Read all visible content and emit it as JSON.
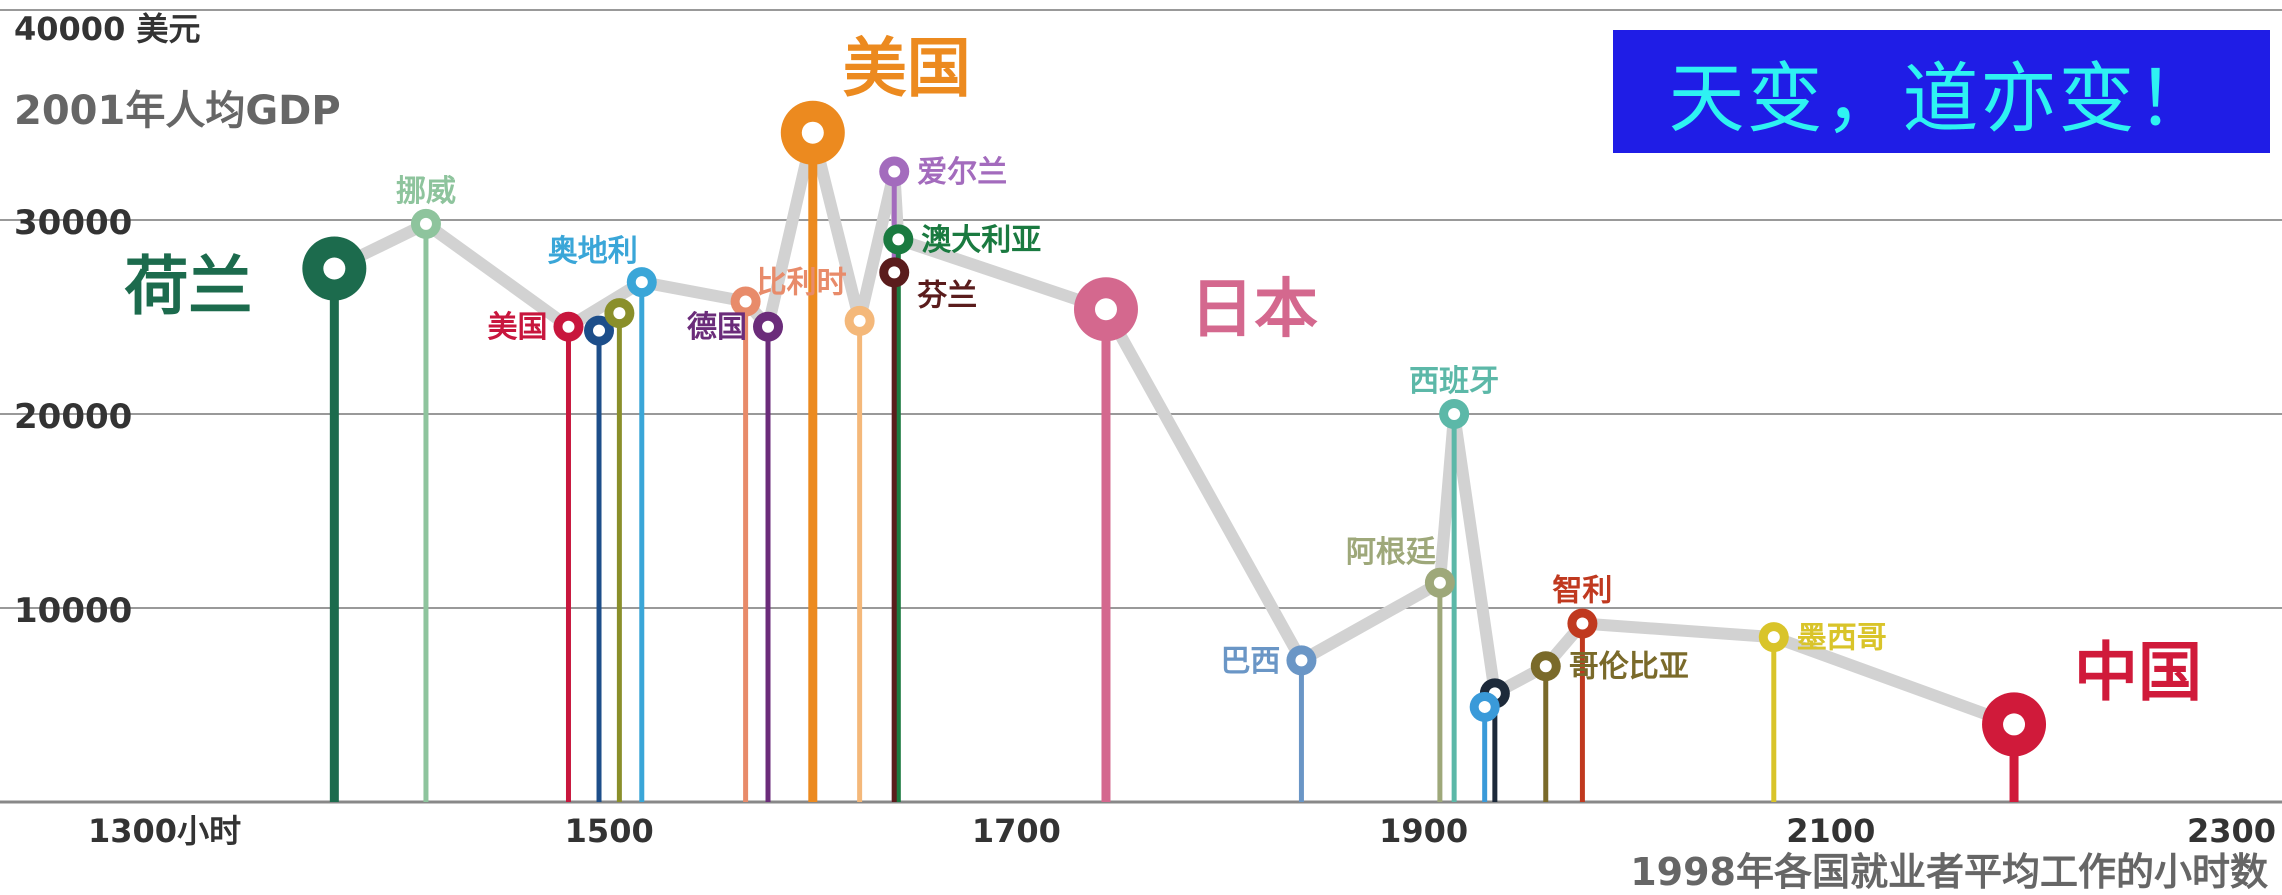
{
  "banner": {
    "text": "天变，道亦变！"
  },
  "chart_data": {
    "type": "scatter",
    "y_unit_label": "40000 美元",
    "ylabel": "2001年人均GDP",
    "xlabel": "1998年各国就业者平均工作的小时数",
    "xlim": [
      1300,
      2300
    ],
    "ylim": [
      0,
      40000
    ],
    "x_ticks": [
      {
        "value": 1300,
        "label": "1300小时"
      },
      {
        "value": 1500,
        "label": "1500"
      },
      {
        "value": 1700,
        "label": "1700"
      },
      {
        "value": 1900,
        "label": "1900"
      },
      {
        "value": 2100,
        "label": "2100"
      },
      {
        "value": 2300,
        "label": "2300"
      }
    ],
    "y_ticks": [
      {
        "value": 30000,
        "label": "30000"
      },
      {
        "value": 20000,
        "label": "20000"
      },
      {
        "value": 10000,
        "label": "10000"
      }
    ],
    "grid": true,
    "trend_line": true,
    "points": [
      {
        "label": "荷兰",
        "x": 1365,
        "y": 27500,
        "color": "#1c6b4d",
        "size": "large",
        "label_pos": "left"
      },
      {
        "label": "挪威",
        "x": 1410,
        "y": 29800,
        "color": "#8ec49d",
        "size": "small",
        "label_pos": "top"
      },
      {
        "label": "美国",
        "x": 1480,
        "y": 24500,
        "color": "#c8163d",
        "size": "small",
        "label_pos": "left"
      },
      {
        "label": "",
        "x": 1495,
        "y": 24300,
        "color": "#1d4e8a",
        "size": "small",
        "label_pos": "none"
      },
      {
        "label": "",
        "x": 1505,
        "y": 25200,
        "color": "#8a8f2a",
        "size": "small",
        "label_pos": "none"
      },
      {
        "label": "奥地利",
        "x": 1516,
        "y": 26800,
        "color": "#3aa6d8",
        "size": "small",
        "label_pos": "top-left"
      },
      {
        "label": "比利时",
        "x": 1567,
        "y": 25800,
        "color": "#e88b6a",
        "size": "small",
        "label_pos": "top-right"
      },
      {
        "label": "德国",
        "x": 1578,
        "y": 24500,
        "color": "#6b2c7a",
        "size": "small",
        "label_pos": "left"
      },
      {
        "label": "美国",
        "x": 1600,
        "y": 34500,
        "color": "#ec8a1f",
        "size": "large",
        "label_pos": "top-right"
      },
      {
        "label": "",
        "x": 1623,
        "y": 24800,
        "color": "#f4b87a",
        "size": "small",
        "label_pos": "none"
      },
      {
        "label": "爱尔兰",
        "x": 1640,
        "y": 32500,
        "color": "#a36bbd",
        "size": "small",
        "label_pos": "right"
      },
      {
        "label": "澳大利亚",
        "x": 1642,
        "y": 29000,
        "color": "#1a7a40",
        "size": "small",
        "label_pos": "right"
      },
      {
        "label": "芬兰",
        "x": 1640,
        "y": 27300,
        "color": "#5a1c1c",
        "size": "small",
        "label_pos": "right-below"
      },
      {
        "label": "日本",
        "x": 1744,
        "y": 25400,
        "color": "#d4688e",
        "size": "large",
        "label_pos": "right"
      },
      {
        "label": "巴西",
        "x": 1840,
        "y": 7300,
        "color": "#6a96c6",
        "size": "small",
        "label_pos": "left"
      },
      {
        "label": "西班牙",
        "x": 1915,
        "y": 20000,
        "color": "#5cb8a8",
        "size": "small",
        "label_pos": "top"
      },
      {
        "label": "阿根廷",
        "x": 1908,
        "y": 11300,
        "color": "#9ea87a",
        "size": "small",
        "label_pos": "top-left"
      },
      {
        "label": "",
        "x": 1935,
        "y": 5600,
        "color": "#1d2a3a",
        "size": "small",
        "label_pos": "none"
      },
      {
        "label": "",
        "x": 1930,
        "y": 4900,
        "color": "#3a9ad9",
        "size": "small",
        "label_pos": "none"
      },
      {
        "label": "哥伦比亚",
        "x": 1960,
        "y": 7000,
        "color": "#7a6a2a",
        "size": "small",
        "label_pos": "right"
      },
      {
        "label": "智利",
        "x": 1978,
        "y": 9200,
        "color": "#c0391f",
        "size": "small",
        "label_pos": "top"
      },
      {
        "label": "墨西哥",
        "x": 2072,
        "y": 8500,
        "color": "#d9c42a",
        "size": "small",
        "label_pos": "right"
      },
      {
        "label": "中国",
        "x": 2190,
        "y": 4000,
        "color": "#d01a3a",
        "size": "large",
        "label_pos": "top-right"
      }
    ],
    "trend_order": [
      0,
      1,
      2,
      5,
      6,
      7,
      8,
      9,
      10,
      11,
      13,
      14,
      16,
      15,
      17,
      19,
      20,
      21,
      22
    ]
  }
}
